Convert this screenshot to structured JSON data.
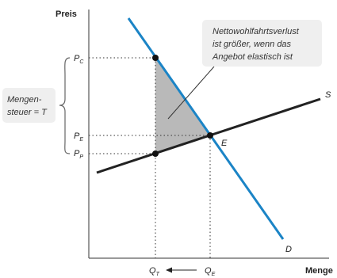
{
  "axes": {
    "y_title": "Preis",
    "x_title": "Menge"
  },
  "price_labels": {
    "pc": {
      "main": "P",
      "sub": "C"
    },
    "pe": {
      "main": "P",
      "sub": "E"
    },
    "pp": {
      "main": "P",
      "sub": "P"
    }
  },
  "quantity_labels": {
    "qt": {
      "main": "Q",
      "sub": "T"
    },
    "qe": {
      "main": "Q",
      "sub": "E"
    }
  },
  "curves": {
    "supply": "S",
    "demand": "D",
    "equilibrium": "E"
  },
  "tax_box": {
    "line1": "Mengen-",
    "line2": "steuer = T"
  },
  "callout": {
    "line1": "Nettowohlfahrtsverlust",
    "line2": "ist größer, wenn das",
    "line3": "Angebot elastisch ist"
  },
  "colors": {
    "demand": "#1b84c6",
    "supply": "#222222",
    "deadweight_fill": "#b9b9b9",
    "callout_bg": "#efefef",
    "tax_box_bg": "#efefef"
  }
}
